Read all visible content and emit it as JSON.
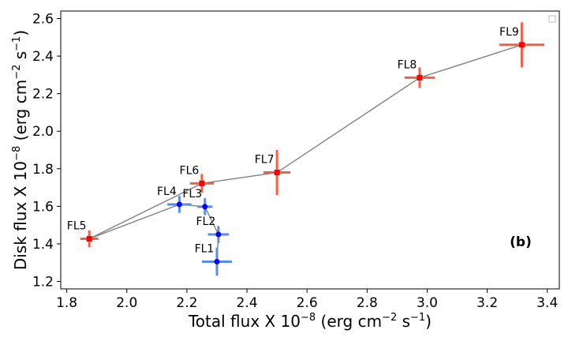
{
  "chart_data": {
    "type": "scatter",
    "xlabel": "Total flux X 10",
    "xlabel_exp": "−8",
    "xlabel_units": " (erg cm",
    "xlabel_units_exp": "−2",
    "xlabel_tail": " s",
    "xlabel_tail_exp": "−1",
    "xlabel_close": ")",
    "ylabel": "Disk flux X 10",
    "ylabel_exp": "−8",
    "ylabel_units": " (erg cm",
    "ylabel_units_exp": "−2",
    "ylabel_tail": " s",
    "ylabel_tail_exp": "−1",
    "ylabel_close": ")",
    "xlim": [
      1.78,
      3.44
    ],
    "ylim": [
      1.16,
      2.64
    ],
    "xticks": [
      "1.8",
      "2.0",
      "2.2",
      "2.4",
      "2.6",
      "2.8",
      "3.0",
      "3.2",
      "3.4"
    ],
    "yticks": [
      "1.2",
      "1.4",
      "1.6",
      "1.8",
      "2.0",
      "2.2",
      "2.4",
      "2.6"
    ],
    "panel_label": "(b)",
    "colors": {
      "red_marker": "#ff0000",
      "red_err": "#f0614b",
      "blue_marker": "#0000ff",
      "blue_err": "#5a8de0",
      "line": "#808080"
    },
    "series": [
      {
        "name": "red",
        "points": [
          {
            "label": "FL5",
            "x": 1.875,
            "y": 1.427,
            "xerr": 0.03,
            "yerr": 0.045
          },
          {
            "label": "FL6",
            "x": 2.25,
            "y": 1.722,
            "xerr": 0.04,
            "yerr": 0.05
          },
          {
            "label": "FL7",
            "x": 2.5,
            "y": 1.78,
            "xerr": 0.045,
            "yerr": 0.12
          },
          {
            "label": "FL8",
            "x": 2.975,
            "y": 2.285,
            "xerr": 0.05,
            "yerr": 0.055
          },
          {
            "label": "FL9",
            "x": 3.315,
            "y": 2.46,
            "xerr": 0.075,
            "yerr": 0.12
          }
        ]
      },
      {
        "name": "blue",
        "points": [
          {
            "label": "FL4",
            "x": 2.175,
            "y": 1.61,
            "xerr": 0.04,
            "yerr": 0.045
          },
          {
            "label": "FL3",
            "x": 2.26,
            "y": 1.598,
            "xerr": 0.025,
            "yerr": 0.045
          },
          {
            "label": "FL2",
            "x": 2.305,
            "y": 1.45,
            "xerr": 0.035,
            "yerr": 0.045
          },
          {
            "label": "FL1",
            "x": 2.3,
            "y": 1.305,
            "xerr": 0.05,
            "yerr": 0.075
          }
        ]
      }
    ],
    "connections": [
      [
        "FL5",
        "FL6"
      ],
      [
        "FL6",
        "FL7"
      ],
      [
        "FL7",
        "FL8"
      ],
      [
        "FL8",
        "FL9"
      ],
      [
        "FL5",
        "FL4"
      ],
      [
        "FL4",
        "FL3"
      ],
      [
        "FL3",
        "FL2"
      ],
      [
        "FL2",
        "FL1"
      ]
    ]
  }
}
